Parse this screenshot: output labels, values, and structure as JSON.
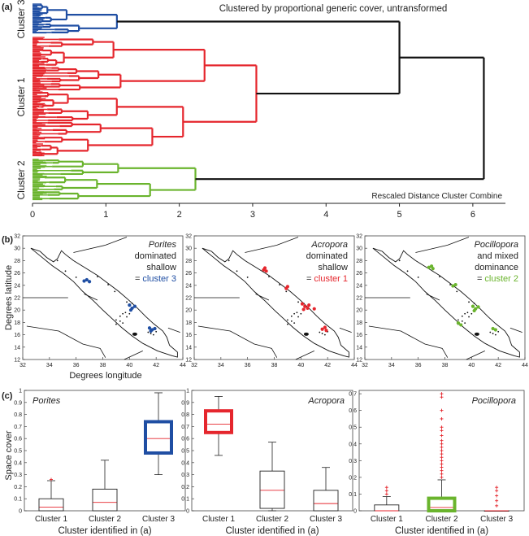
{
  "colors": {
    "cluster1": "#e5262d",
    "cluster2": "#6ab42d",
    "cluster3": "#1f4ea3",
    "link": "#111111",
    "median": "#e5262d",
    "outlier": "#e5262d"
  },
  "chart_data": [
    {
      "panel_label": "(a)",
      "type": "dendrogram",
      "title": "Clustered by proportional generic cover, untransformed",
      "xlabel": "Rescaled Distance Cluster Combine",
      "xlim": [
        0,
        6.4
      ],
      "xticks": [
        "0",
        "1",
        "2",
        "3",
        "4",
        "5",
        "6"
      ],
      "clusters": [
        {
          "label": "Cluster 3",
          "color_key": "cluster3",
          "merge_height": 1.15
        },
        {
          "label": "Cluster 1",
          "color_key": "cluster1",
          "merge_height": 3.05
        },
        {
          "label": "Cluster 2",
          "color_key": "cluster2",
          "merge_height": 2.22
        }
      ],
      "merges": [
        {
          "join": [
            "Cluster 3",
            "Cluster 1"
          ],
          "height": 5.0
        },
        {
          "join": [
            "Cluster 3+1",
            "Cluster 2"
          ],
          "height": 6.15
        }
      ]
    },
    {
      "panel_label": "(b)",
      "type": "scatter",
      "ylabel": "Degrees latitude",
      "xlabel": "Degrees longitude",
      "xlim": [
        32,
        44
      ],
      "ylim": [
        12,
        32
      ],
      "xticks": [
        "32",
        "34",
        "36",
        "38",
        "40",
        "42",
        "44"
      ],
      "yticks": [
        "12",
        "14",
        "16",
        "18",
        "20",
        "22",
        "24",
        "26",
        "28",
        "30",
        "32"
      ],
      "maps": [
        {
          "genus": "Porites",
          "desc": [
            "dominated",
            "shallow"
          ],
          "eq": "=",
          "cluster_text": "cluster 3",
          "color_key": "cluster3",
          "points": [
            [
              36.6,
              24.7
            ],
            [
              36.8,
              24.9
            ],
            [
              37.0,
              24.6
            ],
            [
              40.0,
              20.8
            ],
            [
              40.2,
              20.3
            ],
            [
              40.4,
              20.6
            ],
            [
              40.1,
              20.0
            ],
            [
              41.5,
              17.1
            ],
            [
              41.7,
              16.8
            ],
            [
              41.9,
              17.0
            ],
            [
              41.6,
              16.6
            ]
          ],
          "show_y_ticks": true
        },
        {
          "genus": "Acropora",
          "desc": [
            "dominated",
            "shallow"
          ],
          "eq": "=",
          "cluster_text": "cluster 1",
          "color_key": "cluster1",
          "points": [
            [
              37.2,
              26.5
            ],
            [
              37.3,
              26.8
            ],
            [
              37.4,
              26.3
            ],
            [
              38.9,
              23.5
            ],
            [
              39.0,
              23.8
            ],
            [
              40.1,
              21.0
            ],
            [
              40.3,
              20.6
            ],
            [
              40.5,
              20.3
            ],
            [
              40.2,
              20.1
            ],
            [
              40.6,
              20.8
            ],
            [
              41.0,
              20.2
            ],
            [
              41.6,
              16.9
            ],
            [
              41.8,
              17.2
            ],
            [
              41.9,
              16.7
            ]
          ],
          "show_y_ticks": true
        },
        {
          "genus": "Pocillopora",
          "desc": [
            "and mixed",
            "dominance"
          ],
          "eq": "=",
          "cluster_text": "cluster 2",
          "color_key": "cluster2",
          "points": [
            [
              36.8,
              26.9
            ],
            [
              37.0,
              27.1
            ],
            [
              37.1,
              26.7
            ],
            [
              38.6,
              23.9
            ],
            [
              38.8,
              24.1
            ],
            [
              40.1,
              20.6
            ],
            [
              40.3,
              20.2
            ],
            [
              40.5,
              20.5
            ],
            [
              40.2,
              19.9
            ],
            [
              39.0,
              17.9
            ],
            [
              39.2,
              17.6
            ],
            [
              41.6,
              17.0
            ],
            [
              41.8,
              16.8
            ]
          ],
          "show_y_ticks": true
        }
      ]
    },
    {
      "panel_label": "(c)",
      "type": "box",
      "ylabel": "Space cover",
      "xlabel": "Cluster identified in (a)",
      "categories": [
        "Cluster 1",
        "Cluster 2",
        "Cluster 3"
      ],
      "panels": [
        {
          "genus": "Porites",
          "ylim": [
            0,
            1
          ],
          "yticks": [
            "0",
            "0.1",
            "0.2",
            "0.3",
            "0.4",
            "0.5",
            "0.6",
            "0.7",
            "0.8",
            "0.9",
            "1"
          ],
          "highlight": 2,
          "highlight_color_key": "cluster3",
          "boxes": [
            {
              "min": 0,
              "q1": 0,
              "median": 0.03,
              "q3": 0.1,
              "max": 0.25,
              "outliers": [
                0.26
              ]
            },
            {
              "min": 0,
              "q1": 0,
              "median": 0.07,
              "q3": 0.18,
              "max": 0.42,
              "outliers": []
            },
            {
              "min": 0.3,
              "q1": 0.48,
              "median": 0.6,
              "q3": 0.74,
              "max": 0.98,
              "outliers": []
            }
          ]
        },
        {
          "genus": "Acropora",
          "ylim": [
            0,
            1
          ],
          "yticks": [
            "0",
            "0.1",
            "0.2",
            "0.3",
            "0.4",
            "0.5",
            "0.6",
            "0.7",
            "0.8",
            "0.9",
            "1"
          ],
          "highlight": 0,
          "highlight_color_key": "cluster1",
          "boxes": [
            {
              "min": 0.46,
              "q1": 0.65,
              "median": 0.72,
              "q3": 0.83,
              "max": 0.95,
              "outliers": []
            },
            {
              "min": 0,
              "q1": 0.02,
              "median": 0.17,
              "q3": 0.33,
              "max": 0.57,
              "outliers": []
            },
            {
              "min": 0,
              "q1": 0,
              "median": 0.06,
              "q3": 0.17,
              "max": 0.36,
              "outliers": []
            }
          ]
        },
        {
          "genus": "Pocillopora",
          "ylim": [
            0,
            0.72
          ],
          "yticks": [
            "0",
            "0.1",
            "0.2",
            "0.3",
            "0.4",
            "0.5",
            "0.6",
            "0.7"
          ],
          "highlight": 1,
          "highlight_color_key": "cluster2",
          "boxes": [
            {
              "min": 0,
              "q1": 0,
              "median": 0,
              "q3": 0.035,
              "max": 0.085,
              "outliers": [
                0.1,
                0.12,
                0.14
              ]
            },
            {
              "min": 0,
              "q1": 0,
              "median": 0.02,
              "q3": 0.075,
              "max": 0.185,
              "outliers": [
                0.2,
                0.22,
                0.24,
                0.26,
                0.28,
                0.3,
                0.32,
                0.34,
                0.36,
                0.38,
                0.4,
                0.42,
                0.45,
                0.48,
                0.5,
                0.55,
                0.6,
                0.68,
                0.7
              ]
            },
            {
              "min": 0,
              "q1": 0,
              "median": 0,
              "q3": 0,
              "max": 0,
              "outliers": [
                0.03,
                0.06,
                0.09,
                0.12,
                0.14
              ]
            }
          ]
        }
      ]
    }
  ]
}
